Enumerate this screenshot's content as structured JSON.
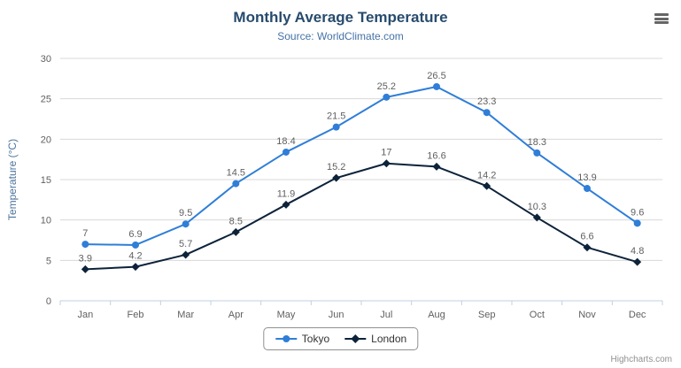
{
  "credits": "Highcharts.com",
  "theme": {
    "title_color": "#274b6d",
    "subtitle_color": "#4572A7",
    "axis_label_color": "#606060",
    "axis_title_color": "#4d759e",
    "grid_color": "#d8d8d8",
    "axis_line_color": "#c0d0e0",
    "data_label_color": "#606060",
    "legend_border_color": "#909090",
    "credits_color": "#909090"
  },
  "chart_data": {
    "type": "line",
    "title": "Monthly Average Temperature",
    "subtitle": "Source: WorldClimate.com",
    "xlabel": "",
    "ylabel": "Temperature (°C)",
    "ylim": [
      0,
      30
    ],
    "yticks": [
      0,
      5,
      10,
      15,
      20,
      25,
      30
    ],
    "grid": true,
    "data_labels": true,
    "legend_position": "bottom",
    "categories": [
      "Jan",
      "Feb",
      "Mar",
      "Apr",
      "May",
      "Jun",
      "Jul",
      "Aug",
      "Sep",
      "Oct",
      "Nov",
      "Dec"
    ],
    "series": [
      {
        "name": "Tokyo",
        "color": "#2f7ed8",
        "marker": "circle",
        "values": [
          7,
          6.9,
          9.5,
          14.5,
          18.4,
          21.5,
          25.2,
          26.5,
          23.3,
          18.3,
          13.9,
          9.6
        ]
      },
      {
        "name": "London",
        "color": "#0d233a",
        "marker": "diamond",
        "values": [
          3.9,
          4.2,
          5.7,
          8.5,
          11.9,
          15.2,
          17,
          16.6,
          14.2,
          10.3,
          6.6,
          4.8
        ]
      }
    ]
  }
}
